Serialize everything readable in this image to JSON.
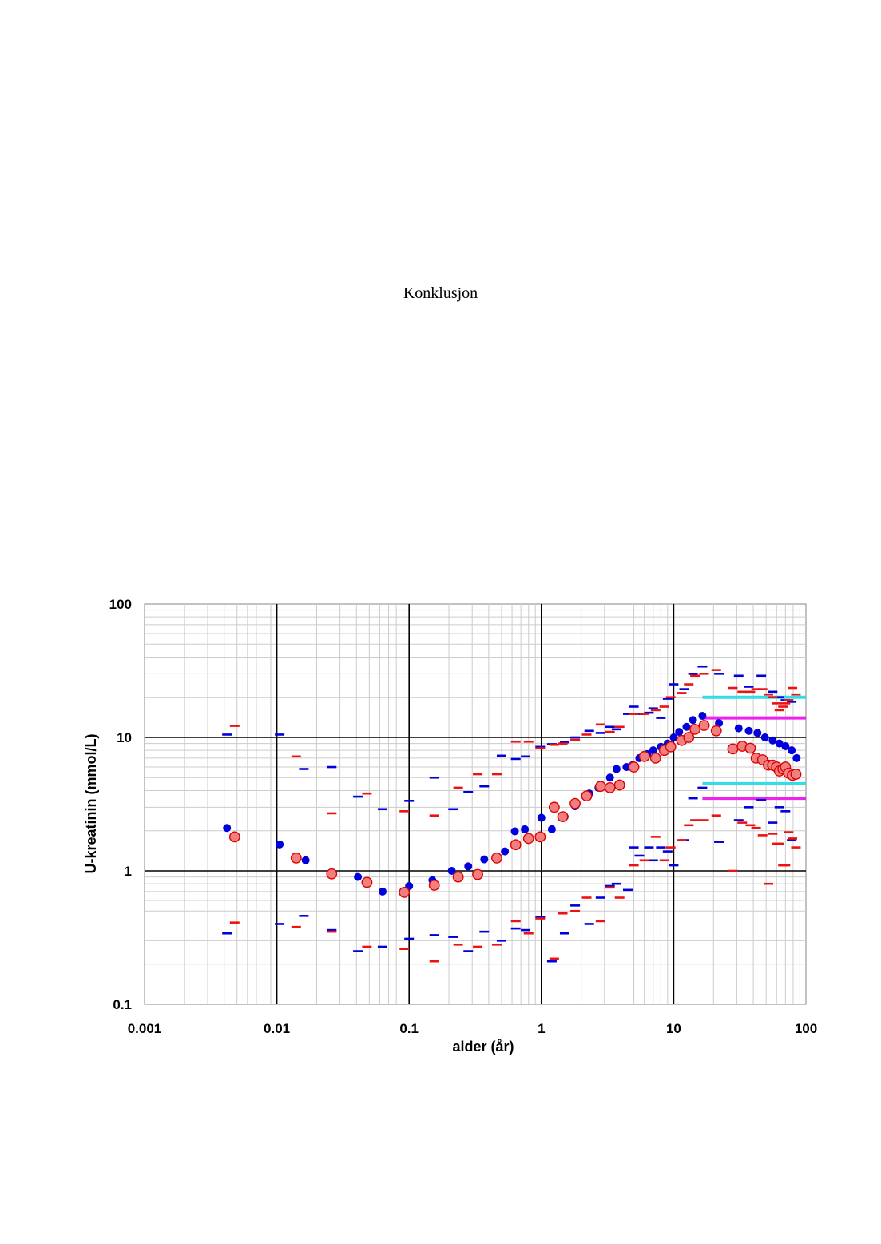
{
  "page": {
    "heading": "Konklusjon"
  },
  "chart_data": {
    "type": "scatter",
    "title": "",
    "xlabel": "alder (år)",
    "ylabel": "U-kreatinin (mmol/L)",
    "x_scale": "log",
    "y_scale": "log",
    "xlim": [
      0.001,
      100
    ],
    "ylim": [
      0.1,
      100
    ],
    "x_ticks": [
      "0.001",
      "0.01",
      "0.1",
      "1",
      "10",
      "100"
    ],
    "y_ticks": [
      "0.1",
      "1",
      "10",
      "100"
    ],
    "grid": true,
    "legend": "none",
    "colors": {
      "blue": "#0000dd",
      "red_fill": "#f08080",
      "red_edge": "#dd0000",
      "red_dash": "#ee1111",
      "cyan": "#33dde8",
      "magenta": "#ee22ee"
    },
    "series": [
      {
        "marker": "circle",
        "color": "#0000dd",
        "x": [
          0.0042,
          0.0105,
          0.0165,
          0.026,
          0.041,
          0.063,
          0.1,
          0.15,
          0.21,
          0.28,
          0.37,
          0.53,
          0.63,
          0.75,
          1.0,
          1.2,
          1.5,
          1.8,
          2.3,
          2.7,
          3.3,
          3.7,
          4.4,
          4.9,
          5.5,
          6.3,
          7.0,
          8.0,
          9.0,
          10.0,
          11.0,
          12.5,
          14.0,
          16.5,
          22,
          31,
          37,
          43,
          49,
          56,
          63,
          70,
          78,
          85
        ],
        "y": [
          2.1,
          1.58,
          1.2,
          0.97,
          0.9,
          0.7,
          0.77,
          0.85,
          1.0,
          1.08,
          1.22,
          1.4,
          1.98,
          2.05,
          2.5,
          2.05,
          2.55,
          3.05,
          3.8,
          4.2,
          5.0,
          5.8,
          6.0,
          6.2,
          7.0,
          7.5,
          8.0,
          8.5,
          9.0,
          10.0,
          11.0,
          12.0,
          13.5,
          14.5,
          12.8,
          11.7,
          11.2,
          10.8,
          10.0,
          9.5,
          9.0,
          8.6,
          8.0,
          7.0
        ]
      },
      {
        "marker": "circle",
        "color": "#f08080",
        "x": [
          0.0048,
          0.014,
          0.026,
          0.048,
          0.092,
          0.155,
          0.235,
          0.33,
          0.46,
          0.64,
          0.8,
          0.98,
          1.25,
          1.45,
          1.8,
          2.2,
          2.8,
          3.3,
          3.9,
          5.0,
          6.0,
          7.3,
          8.5,
          9.5,
          11.5,
          13.0,
          14.5,
          17,
          21,
          28,
          33,
          38,
          42,
          47,
          52,
          56,
          60,
          63,
          67,
          70,
          74,
          79,
          84
        ],
        "y": [
          1.8,
          1.25,
          0.95,
          0.82,
          0.69,
          0.78,
          0.9,
          0.94,
          1.25,
          1.57,
          1.75,
          1.8,
          3.0,
          2.55,
          3.2,
          3.65,
          4.3,
          4.2,
          4.4,
          6.0,
          7.2,
          7.0,
          8.0,
          8.5,
          9.5,
          10.0,
          11.5,
          12.3,
          11.2,
          8.2,
          8.6,
          8.3,
          7.0,
          6.8,
          6.2,
          6.2,
          6.0,
          5.6,
          5.8,
          6.0,
          5.4,
          5.2,
          5.3
        ]
      },
      {
        "marker": "dash",
        "color": "#0000dd",
        "x": [
          0.0042,
          0.0105,
          0.016,
          0.026,
          0.041,
          0.063,
          0.1,
          0.155,
          0.215,
          0.28,
          0.37,
          0.5,
          0.64,
          0.76,
          0.98,
          1.2,
          1.5,
          1.8,
          2.3,
          2.8,
          3.3,
          3.7,
          4.5,
          5.0,
          5.5,
          6.5,
          7.0,
          8.0,
          9.0,
          10.0,
          12.0,
          14.0,
          16.5,
          22,
          31,
          37,
          46,
          56,
          63,
          70,
          78,
          0.0042,
          0.0105,
          0.016,
          0.026,
          0.041,
          0.063,
          0.1,
          0.155,
          0.215,
          0.28,
          0.37,
          0.5,
          0.64,
          0.76,
          0.98,
          1.2,
          1.5,
          1.8,
          2.3,
          2.8,
          3.3,
          3.7,
          4.5,
          5.0,
          5.5,
          6.5,
          7.0,
          8.0,
          9.0,
          10.0,
          12.0,
          14.0,
          16.5,
          22,
          31,
          37,
          46,
          56,
          63,
          70,
          78
        ],
        "y": [
          10.5,
          10.5,
          5.8,
          6.0,
          3.6,
          2.9,
          3.35,
          5.0,
          2.9,
          3.9,
          4.3,
          7.3,
          6.9,
          7.2,
          8.5,
          8.9,
          9.2,
          10.0,
          11.2,
          10.8,
          12.0,
          11.5,
          15.0,
          17.0,
          15.0,
          15.3,
          16.5,
          14.0,
          19.5,
          25.0,
          23.0,
          30.0,
          34.0,
          30.0,
          29.0,
          24.0,
          29.0,
          22.0,
          20.0,
          19.0,
          18.5,
          0.34,
          0.4,
          0.46,
          0.36,
          0.25,
          0.27,
          0.31,
          0.33,
          0.32,
          0.25,
          0.35,
          0.3,
          0.37,
          0.36,
          0.45,
          0.21,
          0.34,
          0.55,
          0.4,
          0.63,
          0.77,
          0.8,
          0.72,
          1.5,
          1.3,
          1.5,
          1.2,
          1.5,
          1.4,
          1.1,
          1.7,
          3.5,
          4.2,
          1.65,
          2.4,
          3.0,
          3.4,
          2.3,
          3.0,
          2.8,
          1.7
        ]
      },
      {
        "marker": "dash",
        "color": "#ee1111",
        "x": [
          0.0048,
          0.014,
          0.026,
          0.048,
          0.092,
          0.155,
          0.235,
          0.33,
          0.46,
          0.64,
          0.8,
          0.98,
          1.25,
          1.45,
          1.8,
          2.2,
          2.8,
          3.3,
          3.9,
          5.0,
          6.0,
          7.3,
          8.5,
          9.5,
          11.5,
          13.0,
          14.5,
          17,
          21,
          28,
          33,
          38,
          42,
          47,
          52,
          56,
          60,
          63,
          67,
          70,
          74,
          79,
          84,
          0.0048,
          0.014,
          0.026,
          0.048,
          0.092,
          0.155,
          0.235,
          0.33,
          0.46,
          0.64,
          0.8,
          0.98,
          1.25,
          1.45,
          1.8,
          2.2,
          2.8,
          3.3,
          3.9,
          5.0,
          6.0,
          7.3,
          8.5,
          9.5,
          11.5,
          13.0,
          14.5,
          17,
          21,
          28,
          33,
          38,
          42,
          47,
          52,
          56,
          60,
          63,
          67,
          70,
          74,
          79,
          84
        ],
        "y": [
          12.2,
          7.2,
          2.7,
          3.8,
          2.8,
          2.6,
          4.2,
          5.3,
          5.3,
          9.3,
          9.3,
          8.3,
          8.8,
          9.0,
          9.6,
          10.5,
          12.5,
          11.0,
          12.0,
          15.0,
          15.0,
          16.0,
          17.0,
          20.0,
          21.5,
          25.0,
          29.0,
          30.0,
          32.0,
          23.5,
          22.0,
          22.0,
          23.0,
          23.0,
          21.0,
          20.0,
          18.0,
          16.0,
          17.0,
          18.0,
          19.0,
          23.5,
          21.0,
          0.41,
          0.38,
          0.35,
          0.27,
          0.26,
          0.21,
          0.28,
          0.27,
          0.28,
          0.42,
          0.34,
          0.44,
          0.22,
          0.48,
          0.5,
          0.63,
          0.42,
          0.75,
          0.63,
          1.1,
          1.2,
          1.8,
          1.2,
          1.5,
          1.7,
          2.2,
          2.4,
          2.4,
          2.6,
          1.0,
          2.3,
          2.2,
          2.1,
          1.85,
          0.8,
          1.9,
          1.6,
          1.6,
          1.1,
          1.1,
          1.95,
          1.75,
          1.5
        ]
      },
      {
        "marker": "line",
        "color": "#33dde8",
        "x": [
          16.5,
          100
        ],
        "y": [
          20.0,
          20.0
        ]
      },
      {
        "marker": "line",
        "color": "#33dde8",
        "x": [
          16.5,
          100
        ],
        "y": [
          4.5,
          4.5
        ]
      },
      {
        "marker": "line",
        "color": "#ee22ee",
        "x": [
          16.5,
          100
        ],
        "y": [
          14.0,
          14.0
        ]
      },
      {
        "marker": "line",
        "color": "#ee22ee",
        "x": [
          16.5,
          100
        ],
        "y": [
          3.5,
          3.5
        ]
      }
    ]
  }
}
